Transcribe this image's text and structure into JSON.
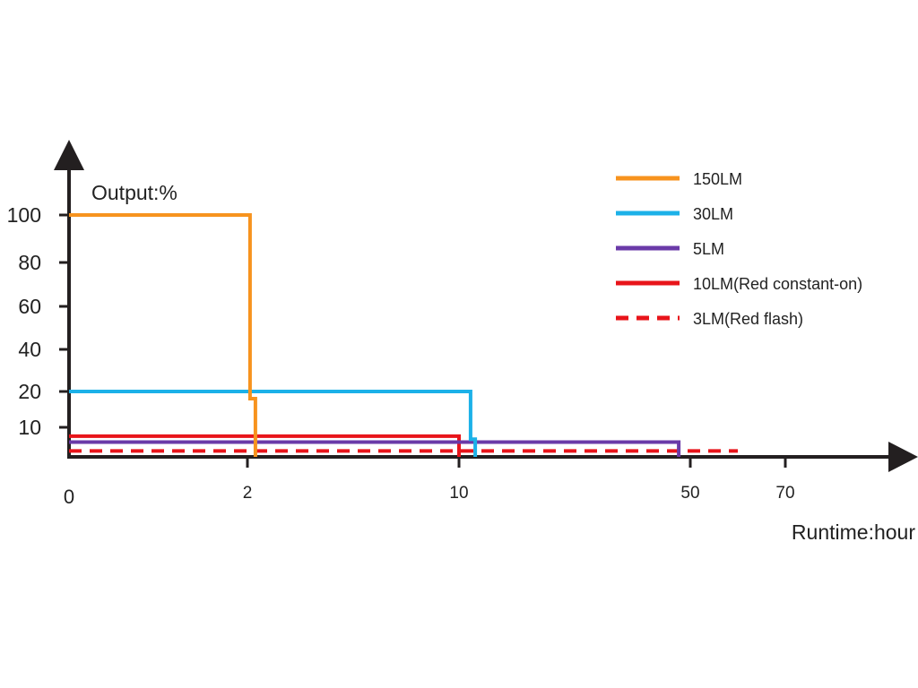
{
  "chart_data": {
    "type": "line",
    "title": "",
    "ylabel": "Output:%",
    "xlabel": "Runtime:hour",
    "x_ticks": [
      "0",
      "2",
      "10",
      "50",
      "70"
    ],
    "y_ticks": [
      "100",
      "80",
      "60",
      "40",
      "20",
      "10"
    ],
    "legend_position": "top-right",
    "grid": false,
    "series": [
      {
        "name": "150LM",
        "color": "#f7931e",
        "style": "solid",
        "points": [
          [
            0,
            100
          ],
          [
            2.1,
            100
          ],
          [
            2.1,
            18
          ],
          [
            2.3,
            18
          ],
          [
            2.3,
            0
          ]
        ]
      },
      {
        "name": "30LM",
        "color": "#1cb1e8",
        "style": "solid",
        "points": [
          [
            0,
            20
          ],
          [
            12,
            20
          ],
          [
            12,
            6
          ],
          [
            12.8,
            6
          ],
          [
            12.8,
            0
          ]
        ]
      },
      {
        "name": "5LM",
        "color": "#6a3aa8",
        "style": "solid",
        "points": [
          [
            0,
            5
          ],
          [
            48,
            5
          ],
          [
            48,
            0
          ]
        ]
      },
      {
        "name": "10LM(Red constant-on)",
        "color": "#e8141a",
        "style": "solid",
        "points": [
          [
            0,
            7
          ],
          [
            10,
            7
          ],
          [
            10,
            0
          ]
        ]
      },
      {
        "name": "3LM(Red flash)",
        "color": "#e8141a",
        "style": "dashed",
        "points": [
          [
            0,
            2
          ],
          [
            60,
            2
          ]
        ]
      }
    ]
  }
}
